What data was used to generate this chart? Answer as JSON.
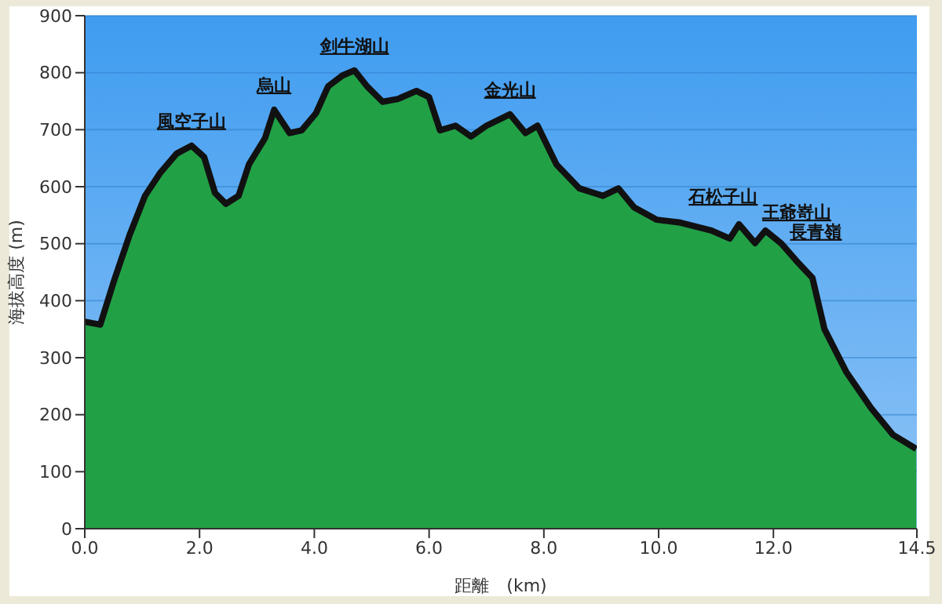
{
  "chart_data": {
    "type": "area",
    "xlabel": "距離　(km)",
    "ylabel": "海拔高度 (m)",
    "xlim": [
      0,
      14.5
    ],
    "ylim": [
      0,
      900
    ],
    "xticks": [
      {
        "value": 0,
        "label": "0.0"
      },
      {
        "value": 2,
        "label": "2.0"
      },
      {
        "value": 4,
        "label": "4.0"
      },
      {
        "value": 6,
        "label": "6.0"
      },
      {
        "value": 8,
        "label": "8.0"
      },
      {
        "value": 10,
        "label": "10.0"
      },
      {
        "value": 12,
        "label": "12.0"
      },
      14.5
    ],
    "yticks": [
      0,
      100,
      200,
      300,
      400,
      500,
      600,
      700,
      800,
      900
    ],
    "grid": "y",
    "series": [
      {
        "color": "#22a046",
        "x": [
          0,
          0.27,
          0.5,
          0.78,
          1.05,
          1.32,
          1.6,
          1.86,
          2.08,
          2.27,
          2.46,
          2.68,
          2.86,
          3.14,
          3.3,
          3.57,
          3.78,
          4.03,
          4.24,
          4.49,
          4.7,
          4.92,
          5.19,
          5.46,
          5.78,
          6.0,
          6.19,
          6.46,
          6.73,
          7.0,
          7.41,
          7.68,
          7.89,
          8.22,
          8.62,
          9.03,
          9.3,
          9.57,
          9.97,
          10.38,
          10.92,
          11.24,
          11.4,
          11.68,
          11.86,
          12.14,
          12.4,
          12.68,
          12.89,
          13.27,
          13.7,
          14.08,
          14.49
        ],
        "values": [
          363,
          358,
          432,
          515,
          584,
          625,
          658,
          672,
          652,
          589,
          570,
          584,
          639,
          685,
          735,
          694,
          699,
          729,
          776,
          795,
          804,
          776,
          749,
          754,
          768,
          757,
          699,
          707,
          688,
          707,
          727,
          694,
          707,
          639,
          597,
          584,
          597,
          564,
          542,
          537,
          523,
          509,
          534,
          501,
          523,
          500,
          470,
          440,
          350,
          275,
          212,
          165,
          140
        ]
      }
    ],
    "annotations": [
      {
        "text": "風空子山",
        "x": 1.86,
        "y": 672
      },
      {
        "text": "烏山",
        "x": 3.3,
        "y": 735
      },
      {
        "text": "剑牛湖山",
        "x": 4.7,
        "y": 804
      },
      {
        "text": "金光山",
        "x": 7.41,
        "y": 727
      },
      {
        "text": "石松子山",
        "x": 11.4,
        "y": 534
      },
      {
        "text": "王爺嵜山",
        "x": 11.86,
        "y": 523
      },
      {
        "text": "長青嶺",
        "x": 12.14,
        "y": 500
      }
    ]
  }
}
